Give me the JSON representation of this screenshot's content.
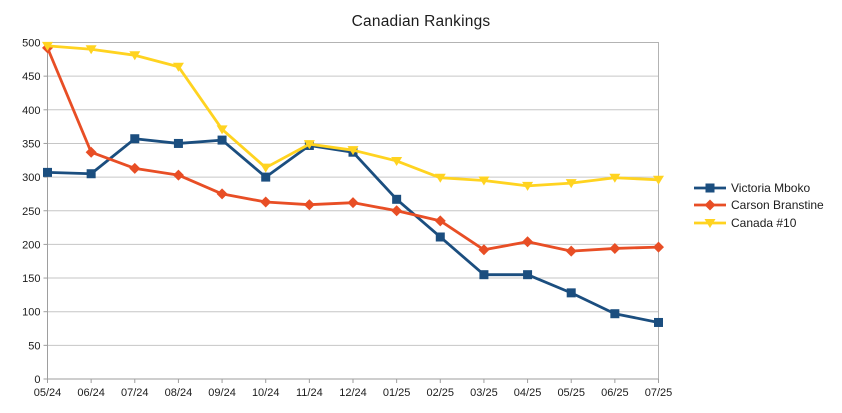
{
  "chart_data": {
    "type": "line",
    "title": "Canadian Rankings",
    "xlabel": "",
    "ylabel": "",
    "categories": [
      "05/24",
      "06/24",
      "07/24",
      "08/24",
      "09/24",
      "10/24",
      "11/24",
      "12/24",
      "01/25",
      "02/25",
      "03/25",
      "04/25",
      "05/25",
      "06/25",
      "07/25"
    ],
    "series": [
      {
        "name": "Victoria Mboko",
        "color": "#1B4E7F",
        "marker": "square",
        "values": [
          307,
          305,
          357,
          350,
          355,
          300,
          347,
          337,
          267,
          211,
          155,
          155,
          128,
          97,
          84
        ]
      },
      {
        "name": "Carson Branstine",
        "color": "#E84E25",
        "marker": "diamond",
        "values": [
          492,
          337,
          313,
          303,
          275,
          263,
          259,
          262,
          250,
          235,
          192,
          204,
          190,
          194,
          196
        ]
      },
      {
        "name": "Canada #10",
        "color": "#FFD320",
        "marker": "triangle-down",
        "values": [
          495,
          490,
          481,
          464,
          371,
          314,
          349,
          340,
          324,
          299,
          295,
          287,
          291,
          299,
          296
        ]
      }
    ],
    "ylim": [
      0,
      500
    ],
    "ytick_step": 50,
    "grid": "horizontal",
    "legend_position": "right",
    "colors": {
      "grid_line": "#c6c6c6",
      "plot_border": "#b3b3b3",
      "axis_line": "#9e9e9e",
      "axis_text": "#1c1c1c",
      "background": "#ffffff"
    }
  }
}
